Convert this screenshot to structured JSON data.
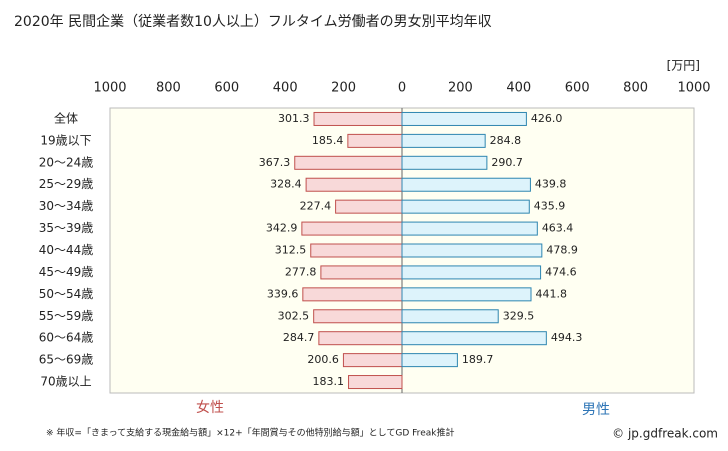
{
  "chart_data": {
    "type": "butterfly",
    "title": "2020年 民間企業（従業者数10人以上）フルタイム労働者の男女別平均年収",
    "unit": "[万円]",
    "categories": [
      "全体",
      "19歳以下",
      "20～24歳",
      "25～29歳",
      "30～34歳",
      "35～39歳",
      "40～44歳",
      "45～49歳",
      "50～54歳",
      "55～59歳",
      "60～64歳",
      "65～69歳",
      "70歳以上"
    ],
    "series": [
      {
        "name": "女性",
        "color": "#f8d9d9",
        "edge": "#c0504d",
        "text_color": "#c0504d",
        "values": [
          301.3,
          185.4,
          367.3,
          328.4,
          227.4,
          342.9,
          312.5,
          277.8,
          339.6,
          302.5,
          284.7,
          200.6,
          183.1
        ]
      },
      {
        "name": "男性",
        "color": "#ddf3fb",
        "edge": "#2e86b0",
        "text_color": "#2e75b6",
        "values": [
          426.0,
          284.8,
          290.7,
          439.8,
          435.9,
          463.4,
          478.9,
          474.6,
          441.8,
          329.5,
          494.3,
          189.7,
          0
        ],
        "value_labels": [
          "426.0",
          "284.8",
          "290.7",
          "439.8",
          "435.9",
          "463.4",
          "478.9",
          "474.6",
          "441.8",
          "329.5",
          "494.3",
          "189.7",
          ""
        ]
      }
    ],
    "xlim": [
      0,
      1000
    ],
    "xticks": [
      0,
      200,
      400,
      600,
      800,
      1000
    ],
    "note": "※ 年収=「きまって支給する現金給与額」×12+「年間賞与その他特別給与額」としてGD Freak推計",
    "credit": "© jp.gdfreak.com"
  }
}
